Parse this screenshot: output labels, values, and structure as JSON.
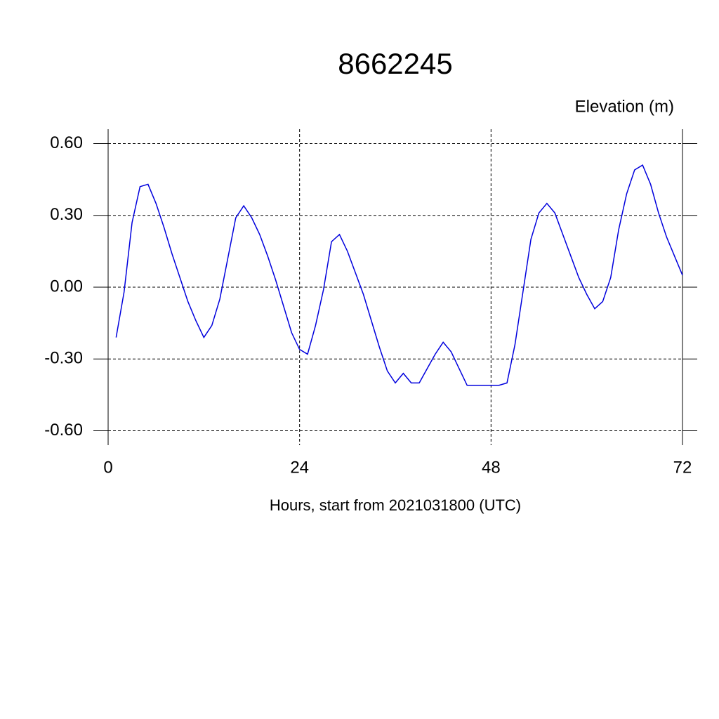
{
  "chart_data": {
    "type": "line",
    "title": "8662245",
    "subtitle": "Elevation (m)",
    "x_label": "Hours, start from 2021031800 (UTC)",
    "x": [
      1,
      2,
      3,
      4,
      5,
      6,
      7,
      8,
      9,
      10,
      11,
      12,
      13,
      14,
      15,
      16,
      17,
      18,
      19,
      20,
      21,
      22,
      23,
      24,
      25,
      26,
      27,
      28,
      29,
      30,
      31,
      32,
      33,
      34,
      35,
      36,
      37,
      38,
      39,
      40,
      41,
      42,
      43,
      44,
      45,
      46,
      47,
      48,
      49,
      50,
      51,
      52,
      53,
      54,
      55,
      56,
      57,
      58,
      59,
      60,
      61,
      62,
      63,
      64,
      65,
      66,
      67,
      68,
      69,
      70,
      71,
      72
    ],
    "series": [
      {
        "color": "#0000dd",
        "values": [
          -0.21,
          -0.02,
          0.27,
          0.42,
          0.43,
          0.35,
          0.25,
          0.14,
          0.04,
          -0.06,
          -0.14,
          -0.21,
          -0.16,
          -0.05,
          0.12,
          0.29,
          0.34,
          0.29,
          0.22,
          0.13,
          0.03,
          -0.08,
          -0.19,
          -0.26,
          -0.28,
          -0.16,
          -0.01,
          0.19,
          0.22,
          0.15,
          0.06,
          -0.03,
          -0.14,
          -0.25,
          -0.35,
          -0.4,
          -0.36,
          -0.4,
          -0.4,
          -0.34,
          -0.28,
          -0.23,
          -0.27,
          -0.34,
          -0.41,
          -0.41,
          -0.41,
          -0.41,
          -0.41,
          -0.4,
          -0.24,
          -0.02,
          0.2,
          0.31,
          0.35,
          0.31,
          0.22,
          0.13,
          0.04,
          -0.03,
          -0.09,
          -0.06,
          0.04,
          0.24,
          0.39,
          0.49,
          0.51,
          0.43,
          0.31,
          0.21,
          0.13,
          0.05
        ]
      }
    ],
    "xlim": [
      0,
      72
    ],
    "xticks": [
      0,
      24,
      48,
      72
    ],
    "ylim": [
      -0.66,
      0.66
    ],
    "yticks": [
      {
        "value": -0.6,
        "label": "-0.60"
      },
      {
        "value": -0.3,
        "label": "-0.30"
      },
      {
        "value": 0,
        "label": "0.00"
      },
      {
        "value": 0.3,
        "label": "0.30"
      },
      {
        "value": 0.6,
        "label": "0.60"
      }
    ],
    "grid": true
  }
}
